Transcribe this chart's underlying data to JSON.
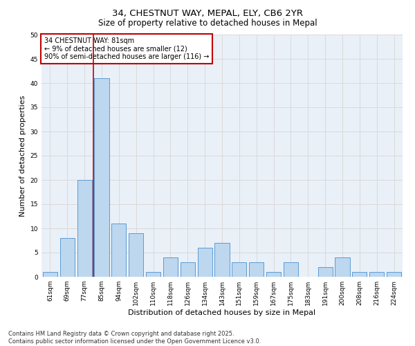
{
  "title_line1": "34, CHESTNUT WAY, MEPAL, ELY, CB6 2YR",
  "title_line2": "Size of property relative to detached houses in Mepal",
  "xlabel": "Distribution of detached houses by size in Mepal",
  "ylabel": "Number of detached properties",
  "categories": [
    "61sqm",
    "69sqm",
    "77sqm",
    "85sqm",
    "94sqm",
    "102sqm",
    "110sqm",
    "118sqm",
    "126sqm",
    "134sqm",
    "143sqm",
    "151sqm",
    "159sqm",
    "167sqm",
    "175sqm",
    "183sqm",
    "191sqm",
    "200sqm",
    "208sqm",
    "216sqm",
    "224sqm"
  ],
  "values": [
    1,
    8,
    20,
    41,
    11,
    9,
    1,
    4,
    3,
    6,
    7,
    3,
    3,
    1,
    3,
    0,
    2,
    4,
    1,
    1,
    1
  ],
  "bar_color": "#bdd7ee",
  "bar_edge_color": "#5b9bd5",
  "vline_x": 2.5,
  "vline_color": "#c00000",
  "annotation_text": "34 CHESTNUT WAY: 81sqm\n← 9% of detached houses are smaller (12)\n90% of semi-detached houses are larger (116) →",
  "annotation_box_color": "#c00000",
  "ylim": [
    0,
    50
  ],
  "yticks": [
    0,
    5,
    10,
    15,
    20,
    25,
    30,
    35,
    40,
    45,
    50
  ],
  "grid_color": "#d9d9d9",
  "bg_color": "#eaf0f8",
  "footer_line1": "Contains HM Land Registry data © Crown copyright and database right 2025.",
  "footer_line2": "Contains public sector information licensed under the Open Government Licence v3.0.",
  "title_fontsize": 9.5,
  "subtitle_fontsize": 8.5,
  "axis_label_fontsize": 8,
  "tick_fontsize": 6.5,
  "annotation_fontsize": 7,
  "footer_fontsize": 6
}
